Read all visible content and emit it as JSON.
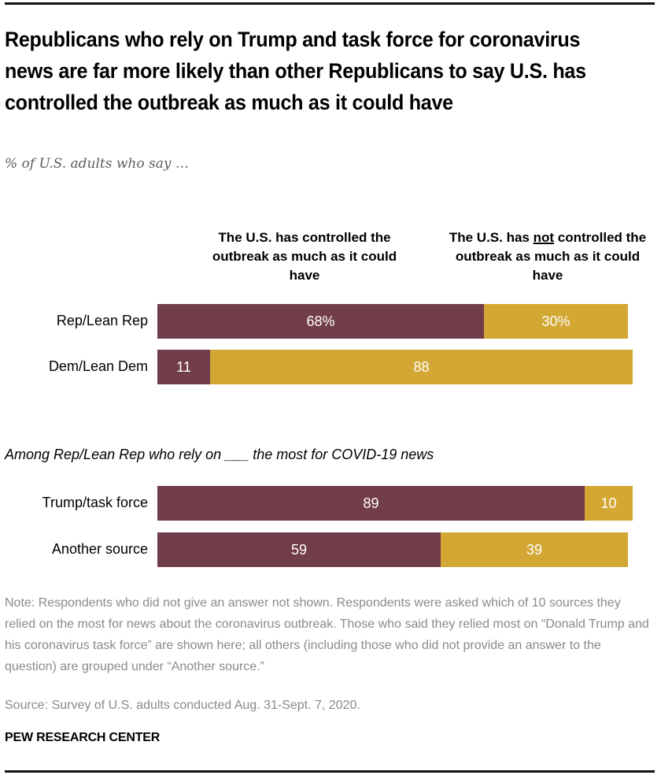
{
  "header": {
    "title": "Republicans who rely on Trump and task force for coronavirus news are far more likely than other Republicans to say U.S. has controlled the outbreak as much as it could have",
    "subtitle": "% of U.S. adults who say …"
  },
  "colors": {
    "controlled": "#723d4a",
    "not_controlled": "#d2a733",
    "value_text": "#ffffff"
  },
  "chart_data": {
    "type": "bar",
    "orientation": "horizontal",
    "stacked": true,
    "title": "Republicans who rely on Trump and task force for coronavirus news are far more likely than other Republicans to say U.S. has controlled the outbreak as much as it could have",
    "subtitle": "% of U.S. adults who say …",
    "xlim": [
      0,
      100
    ],
    "grid": false,
    "legend_placement": "top",
    "series": [
      {
        "name": "The U.S. has controlled the outbreak as much as it could have",
        "name_prefix": "The U.S. has controlled the outbreak as much as it could have",
        "color": "#723d4a"
      },
      {
        "name": "The U.S. has not controlled the outbreak as much as it could have",
        "name_prefix": "The U.S. has ",
        "name_emph": "not",
        "name_suffix": " controlled the outbreak as much as it could have",
        "color": "#d2a733"
      }
    ],
    "groups": [
      {
        "label": "",
        "rows": [
          {
            "category": "Rep/Lean Rep",
            "values": [
              68,
              30
            ],
            "labels": [
              "68%",
              "30%"
            ]
          },
          {
            "category": "Dem/Lean Dem",
            "values": [
              11,
              88
            ],
            "labels": [
              "11",
              "88"
            ]
          }
        ]
      },
      {
        "label": "Among Rep/Lean Rep who rely on ___ the most for COVID-19 news",
        "rows": [
          {
            "category": "Trump/task force",
            "values": [
              89,
              10
            ],
            "labels": [
              "89",
              "10"
            ]
          },
          {
            "category": "Another source",
            "values": [
              59,
              39
            ],
            "labels": [
              "59",
              "39"
            ]
          }
        ]
      }
    ]
  },
  "footer": {
    "note": "Note: Respondents who did not give an answer not shown. Respondents were asked which of 10 sources they relied on the most for news about the coronavirus outbreak. Those who said they relied most on “Donald Trump and his coronavirus task force” are shown here; all others (including those who did not provide an answer to the question) are grouped under “Another source.”",
    "source": "Source: Survey of U.S. adults conducted Aug. 31-Sept. 7, 2020.",
    "brand": "PEW RESEARCH CENTER"
  }
}
